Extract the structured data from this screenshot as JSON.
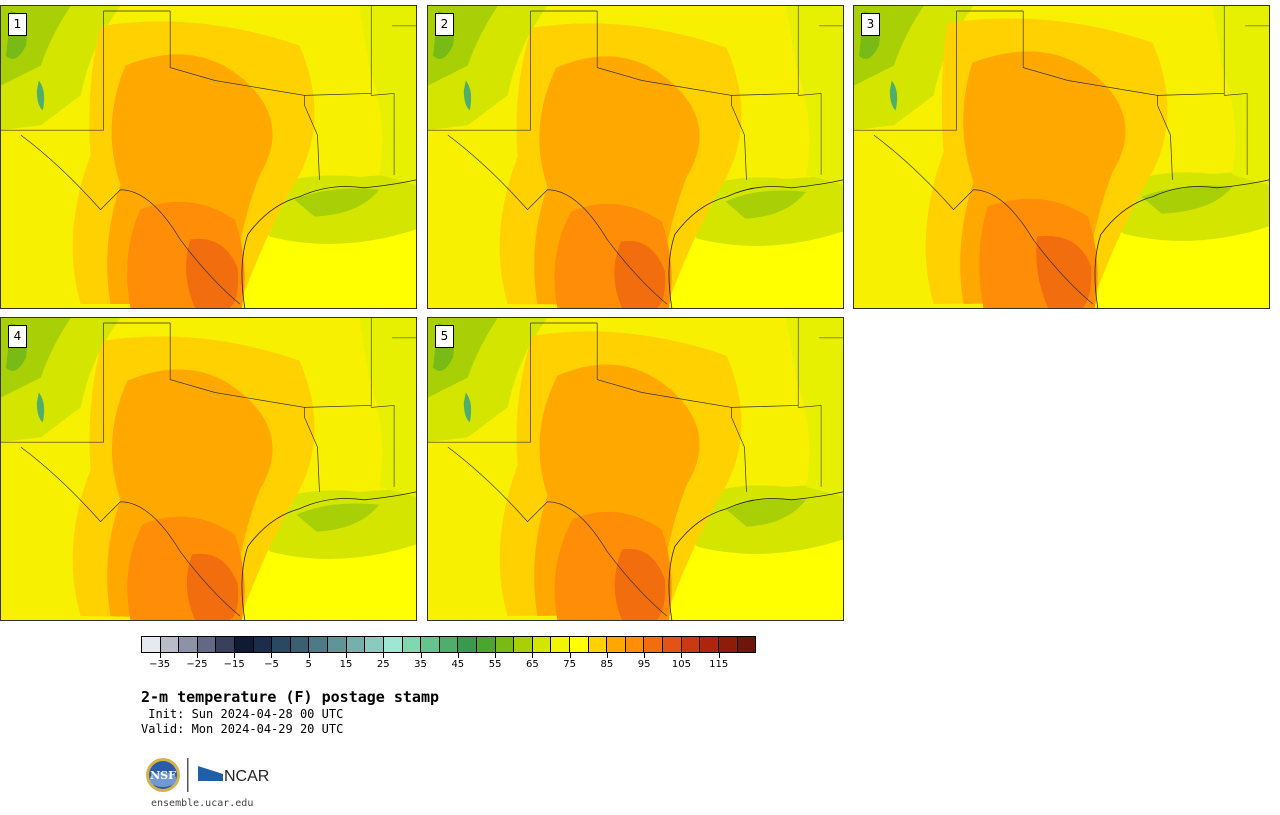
{
  "panels": [
    {
      "label": "1"
    },
    {
      "label": "2"
    },
    {
      "label": "3"
    },
    {
      "label": "4"
    },
    {
      "label": "5"
    }
  ],
  "colorbar": {
    "colors": [
      "#e6e9ee",
      "#b9bcc8",
      "#8e92a6",
      "#636984",
      "#39405e",
      "#0f1a34",
      "#1c2c4b",
      "#2b4863",
      "#3a5e72",
      "#4c7a86",
      "#609597",
      "#75b0ad",
      "#8acbc0",
      "#9ee8d3",
      "#80d8b0",
      "#66c38d",
      "#4fae6b",
      "#39994e",
      "#4aa62d",
      "#79bb16",
      "#a9d007",
      "#d4e500",
      "#f2f500",
      "#ffff00",
      "#ffd100",
      "#ffa900",
      "#ff8d07",
      "#f26d0e",
      "#e45217",
      "#c93912",
      "#ad250d",
      "#8e1c0b",
      "#6e160a"
    ],
    "tick_labels": [
      "−35",
      "−25",
      "−15",
      "−5",
      "5",
      "15",
      "25",
      "35",
      "45",
      "55",
      "65",
      "75",
      "85",
      "95",
      "105",
      "115"
    ],
    "min": -40,
    "max": 125,
    "step": 5
  },
  "title": "2-m temperature (F) postage stamp",
  "init": " Init: Sun 2024-04-28 00 UTC",
  "valid": "Valid: Mon 2024-04-29 20 UTC",
  "logos": {
    "nsf": "NSF",
    "ncar": "NCAR"
  },
  "site": "ensemble.ucar.edu"
}
